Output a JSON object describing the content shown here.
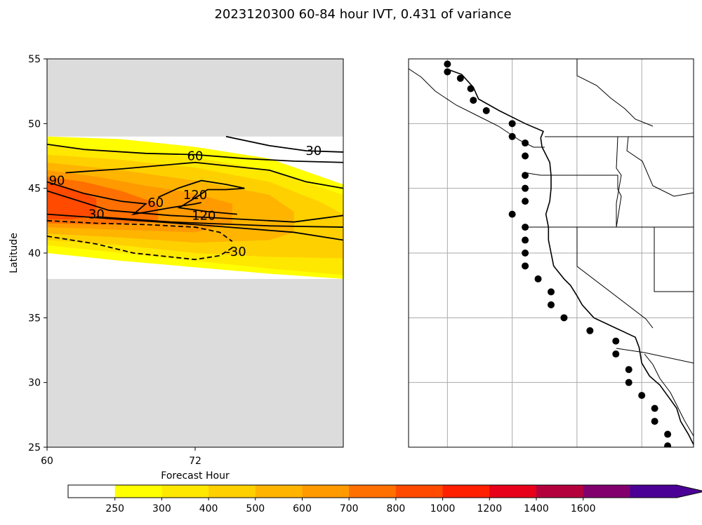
{
  "title": "2023120300 60-84 hour IVT, 0.431 of variance",
  "chart_data": {
    "type": "contour",
    "xlabel": "Forecast Hour",
    "ylabel": "Latitude",
    "xlim": [
      60,
      84
    ],
    "ylim": [
      25,
      55
    ],
    "x_ticks": [
      "60",
      "72"
    ],
    "y_ticks": [
      "25",
      "30",
      "35",
      "40",
      "45",
      "50",
      "55"
    ],
    "data_lat_range": [
      38,
      49
    ],
    "masked_color": "#dcdcdc",
    "filled_bands": [
      {
        "level": 250,
        "top": [
          [
            60,
            49.0
          ],
          [
            66,
            48.8
          ],
          [
            72,
            48.2
          ],
          [
            78,
            47.3
          ],
          [
            84,
            45.3
          ]
        ],
        "bottom": [
          [
            60,
            40.0
          ],
          [
            66,
            39.4
          ],
          [
            72,
            38.9
          ],
          [
            78,
            38.4
          ],
          [
            84,
            38.0
          ]
        ]
      },
      {
        "level": 300,
        "top": [
          [
            60,
            48.3
          ],
          [
            66,
            47.9
          ],
          [
            72,
            47.4
          ],
          [
            78,
            46.4
          ],
          [
            84,
            44.5
          ]
        ],
        "bottom": [
          [
            60,
            40.6
          ],
          [
            66,
            40.0
          ],
          [
            72,
            39.4
          ],
          [
            78,
            38.8
          ],
          [
            84,
            38.3
          ]
        ]
      },
      {
        "level": 400,
        "top": [
          [
            60,
            47.6
          ],
          [
            66,
            47.2
          ],
          [
            72,
            46.6
          ],
          [
            78,
            45.5
          ],
          [
            82,
            44.0
          ],
          [
            84,
            43.0
          ]
        ],
        "bottom": [
          [
            60,
            41.0
          ],
          [
            66,
            40.6
          ],
          [
            72,
            40.0
          ],
          [
            78,
            39.7
          ],
          [
            84,
            39.6
          ]
        ]
      },
      {
        "level": 500,
        "top": [
          [
            60,
            47.0
          ],
          [
            66,
            46.4
          ],
          [
            72,
            45.6
          ],
          [
            78,
            44.5
          ],
          [
            80,
            43.2
          ]
        ],
        "bottom": [
          [
            60,
            41.5
          ],
          [
            66,
            41.2
          ],
          [
            72,
            40.8
          ],
          [
            78,
            41.0
          ],
          [
            80,
            41.6
          ]
        ]
      },
      {
        "level": 600,
        "top": [
          [
            60,
            46.4
          ],
          [
            64,
            45.9
          ],
          [
            68,
            45.2
          ],
          [
            72,
            44.6
          ],
          [
            75,
            43.8
          ]
        ],
        "bottom": [
          [
            60,
            42.0
          ],
          [
            66,
            41.8
          ],
          [
            72,
            41.6
          ],
          [
            75,
            42.3
          ]
        ]
      },
      {
        "level": 700,
        "top": [
          [
            60,
            45.9
          ],
          [
            63,
            45.5
          ],
          [
            66,
            44.8
          ],
          [
            69,
            43.8
          ]
        ],
        "bottom": [
          [
            60,
            42.3
          ],
          [
            64,
            42.2
          ],
          [
            69,
            42.4
          ]
        ]
      },
      {
        "level": 800,
        "top": [
          [
            60,
            45.5
          ],
          [
            62,
            45.0
          ],
          [
            64,
            44.2
          ]
        ],
        "bottom": [
          [
            60,
            42.6
          ],
          [
            62,
            42.6
          ],
          [
            64,
            42.9
          ]
        ]
      }
    ],
    "contours": [
      {
        "label": "30",
        "style": "solid",
        "points": [
          [
            74.5,
            49.0
          ],
          [
            78,
            48.3
          ],
          [
            81,
            47.9
          ],
          [
            84,
            47.8
          ]
        ],
        "label_at": [
          81.6,
          47.9
        ]
      },
      {
        "label": "60",
        "style": "solid",
        "points": [
          [
            60,
            48.4
          ],
          [
            63,
            48.0
          ],
          [
            68,
            47.7
          ],
          [
            72,
            47.6
          ],
          [
            76,
            47.3
          ],
          [
            80,
            47.1
          ],
          [
            84,
            47.0
          ]
        ],
        "label_at": [
          72,
          47.5
        ]
      },
      {
        "label": "90",
        "style": "solid",
        "points": [
          [
            61.5,
            46.2
          ],
          [
            66,
            46.5
          ],
          [
            72,
            47.0
          ],
          [
            78,
            46.4
          ],
          [
            81,
            45.5
          ],
          [
            84,
            45.0
          ]
        ],
        "label_at": [
          60.8,
          45.6
        ]
      },
      {
        "label": "120",
        "style": "solid",
        "points": [
          [
            69,
            44.3
          ],
          [
            70.6,
            45.0
          ],
          [
            72.5,
            45.6
          ],
          [
            74.5,
            45.3
          ],
          [
            76,
            45.0
          ],
          [
            74.5,
            44.9
          ],
          [
            73,
            44.9
          ],
          [
            72.4,
            44.5
          ],
          [
            70.7,
            43.5
          ],
          [
            73,
            43.2
          ],
          [
            75.4,
            43.0
          ]
        ],
        "label_at": [
          72,
          44.5
        ]
      },
      {
        "label": "60",
        "style": "solid",
        "points": [
          [
            60,
            45.5
          ],
          [
            63,
            44.6
          ],
          [
            66,
            44.0
          ],
          [
            68,
            43.8
          ],
          [
            67,
            43.0
          ],
          [
            70,
            43.5
          ],
          [
            72,
            43.8
          ],
          [
            72.5,
            43.9
          ]
        ],
        "label_at": [
          68.8,
          43.9
        ]
      },
      {
        "label": "30",
        "style": "solid",
        "points": [
          [
            60,
            44.8
          ],
          [
            64,
            43.6
          ],
          [
            65,
            43.3
          ]
        ],
        "label_at": [
          64,
          43.0
        ]
      },
      {
        "label": "120",
        "style": "solid",
        "points": [
          [
            65,
            43.3
          ],
          [
            70,
            42.9
          ],
          [
            76,
            42.6
          ],
          [
            80,
            42.4
          ],
          [
            84,
            42.9
          ]
        ],
        "label_at": [
          72.7,
          42.9
        ]
      },
      {
        "label": "",
        "style": "solid",
        "points": [
          [
            64,
            42.8
          ],
          [
            70,
            42.4
          ],
          [
            78,
            42.1
          ],
          [
            84,
            42.0
          ]
        ]
      },
      {
        "label": "",
        "style": "solid",
        "points": [
          [
            60,
            43.0
          ],
          [
            66,
            42.6
          ],
          [
            72,
            42.2
          ],
          [
            76,
            41.9
          ],
          [
            80,
            41.6
          ],
          [
            84,
            41.0
          ]
        ]
      },
      {
        "label": "",
        "style": "dashed",
        "points": [
          [
            60,
            42.5
          ],
          [
            64,
            42.3
          ],
          [
            68,
            42.2
          ],
          [
            72,
            42.0
          ],
          [
            74,
            41.6
          ],
          [
            75,
            40.9
          ]
        ]
      },
      {
        "label": "-30",
        "style": "dashed",
        "points": [
          [
            60,
            41.3
          ],
          [
            64,
            40.7
          ],
          [
            67,
            40.0
          ],
          [
            72,
            39.5
          ],
          [
            74,
            39.8
          ],
          [
            75,
            40.4
          ]
        ],
        "label_at": [
          75.3,
          40.1
        ]
      }
    ],
    "colorbar": {
      "tick_labels": [
        "250",
        "300",
        "400",
        "500",
        "600",
        "700",
        "800",
        "1000",
        "1200",
        "1400",
        "1600"
      ],
      "colors": [
        "#ffffff",
        "#ffff00",
        "#ffe800",
        "#ffd000",
        "#ffb400",
        "#ff9a00",
        "#ff7000",
        "#ff4a00",
        "#ff2000",
        "#e8001a",
        "#b4003c",
        "#82006e",
        "#4b0096"
      ]
    }
  },
  "map": {
    "lon_range": [
      -135,
      -113
    ],
    "lat_range": [
      25,
      55
    ],
    "gridlines_lon": [
      -132,
      -127,
      -122,
      -117
    ],
    "gridlines_lat": [
      30,
      35,
      40,
      45,
      50
    ],
    "coast_points": [
      [
        -132.0,
        54.2
      ],
      [
        -130.9,
        53.8
      ],
      [
        -130.0,
        52.8
      ],
      [
        -129.6,
        51.9
      ],
      [
        -128.0,
        51.0
      ],
      [
        -126.0,
        50.0
      ],
      [
        -124.6,
        49.4
      ],
      [
        -124.8,
        48.9
      ],
      [
        -124.7,
        48.2
      ],
      [
        -124.1,
        47.0
      ],
      [
        -124.0,
        46.0
      ],
      [
        -124.0,
        45.0
      ],
      [
        -124.1,
        44.0
      ],
      [
        -124.4,
        43.0
      ],
      [
        -124.2,
        42.0
      ],
      [
        -124.2,
        41.0
      ],
      [
        -124.0,
        40.0
      ],
      [
        -123.8,
        39.0
      ],
      [
        -123.0,
        38.0
      ],
      [
        -122.5,
        37.5
      ],
      [
        -122.0,
        36.7
      ],
      [
        -121.6,
        36.0
      ],
      [
        -120.7,
        35.0
      ],
      [
        -119.0,
        34.2
      ],
      [
        -117.5,
        33.5
      ],
      [
        -117.2,
        32.7
      ],
      [
        -117.0,
        31.5
      ],
      [
        -116.4,
        30.5
      ],
      [
        -115.6,
        29.8
      ],
      [
        -114.8,
        28.7
      ],
      [
        -114.3,
        28.0
      ],
      [
        -114.0,
        27.0
      ],
      [
        -113.4,
        26.0
      ],
      [
        -113.0,
        25.2
      ]
    ],
    "dots": [
      [
        -132.0,
        54.6
      ],
      [
        -132.0,
        54.0
      ],
      [
        -131.0,
        53.5
      ],
      [
        -130.2,
        52.7
      ],
      [
        -130.0,
        51.8
      ],
      [
        -129.0,
        51.0
      ],
      [
        -127.0,
        50.0
      ],
      [
        -127.0,
        49.0
      ],
      [
        -126.0,
        48.5
      ],
      [
        -126.0,
        47.5
      ],
      [
        -126.0,
        46.0
      ],
      [
        -126.0,
        45.0
      ],
      [
        -126.0,
        44.0
      ],
      [
        -127.0,
        43.0
      ],
      [
        -126.0,
        42.0
      ],
      [
        -126.0,
        41.0
      ],
      [
        -126.0,
        40.0
      ],
      [
        -126.0,
        39.0
      ],
      [
        -125.0,
        38.0
      ],
      [
        -124.0,
        37.0
      ],
      [
        -124.0,
        36.0
      ],
      [
        -123.0,
        35.0
      ],
      [
        -121.0,
        34.0
      ],
      [
        -119.0,
        33.2
      ],
      [
        -119.0,
        32.2
      ],
      [
        -118.0,
        31.0
      ],
      [
        -118.0,
        30.0
      ],
      [
        -117.0,
        29.0
      ],
      [
        -116.0,
        28.0
      ],
      [
        -116.0,
        27.0
      ],
      [
        -115.0,
        26.0
      ],
      [
        -115.0,
        25.1
      ]
    ]
  }
}
